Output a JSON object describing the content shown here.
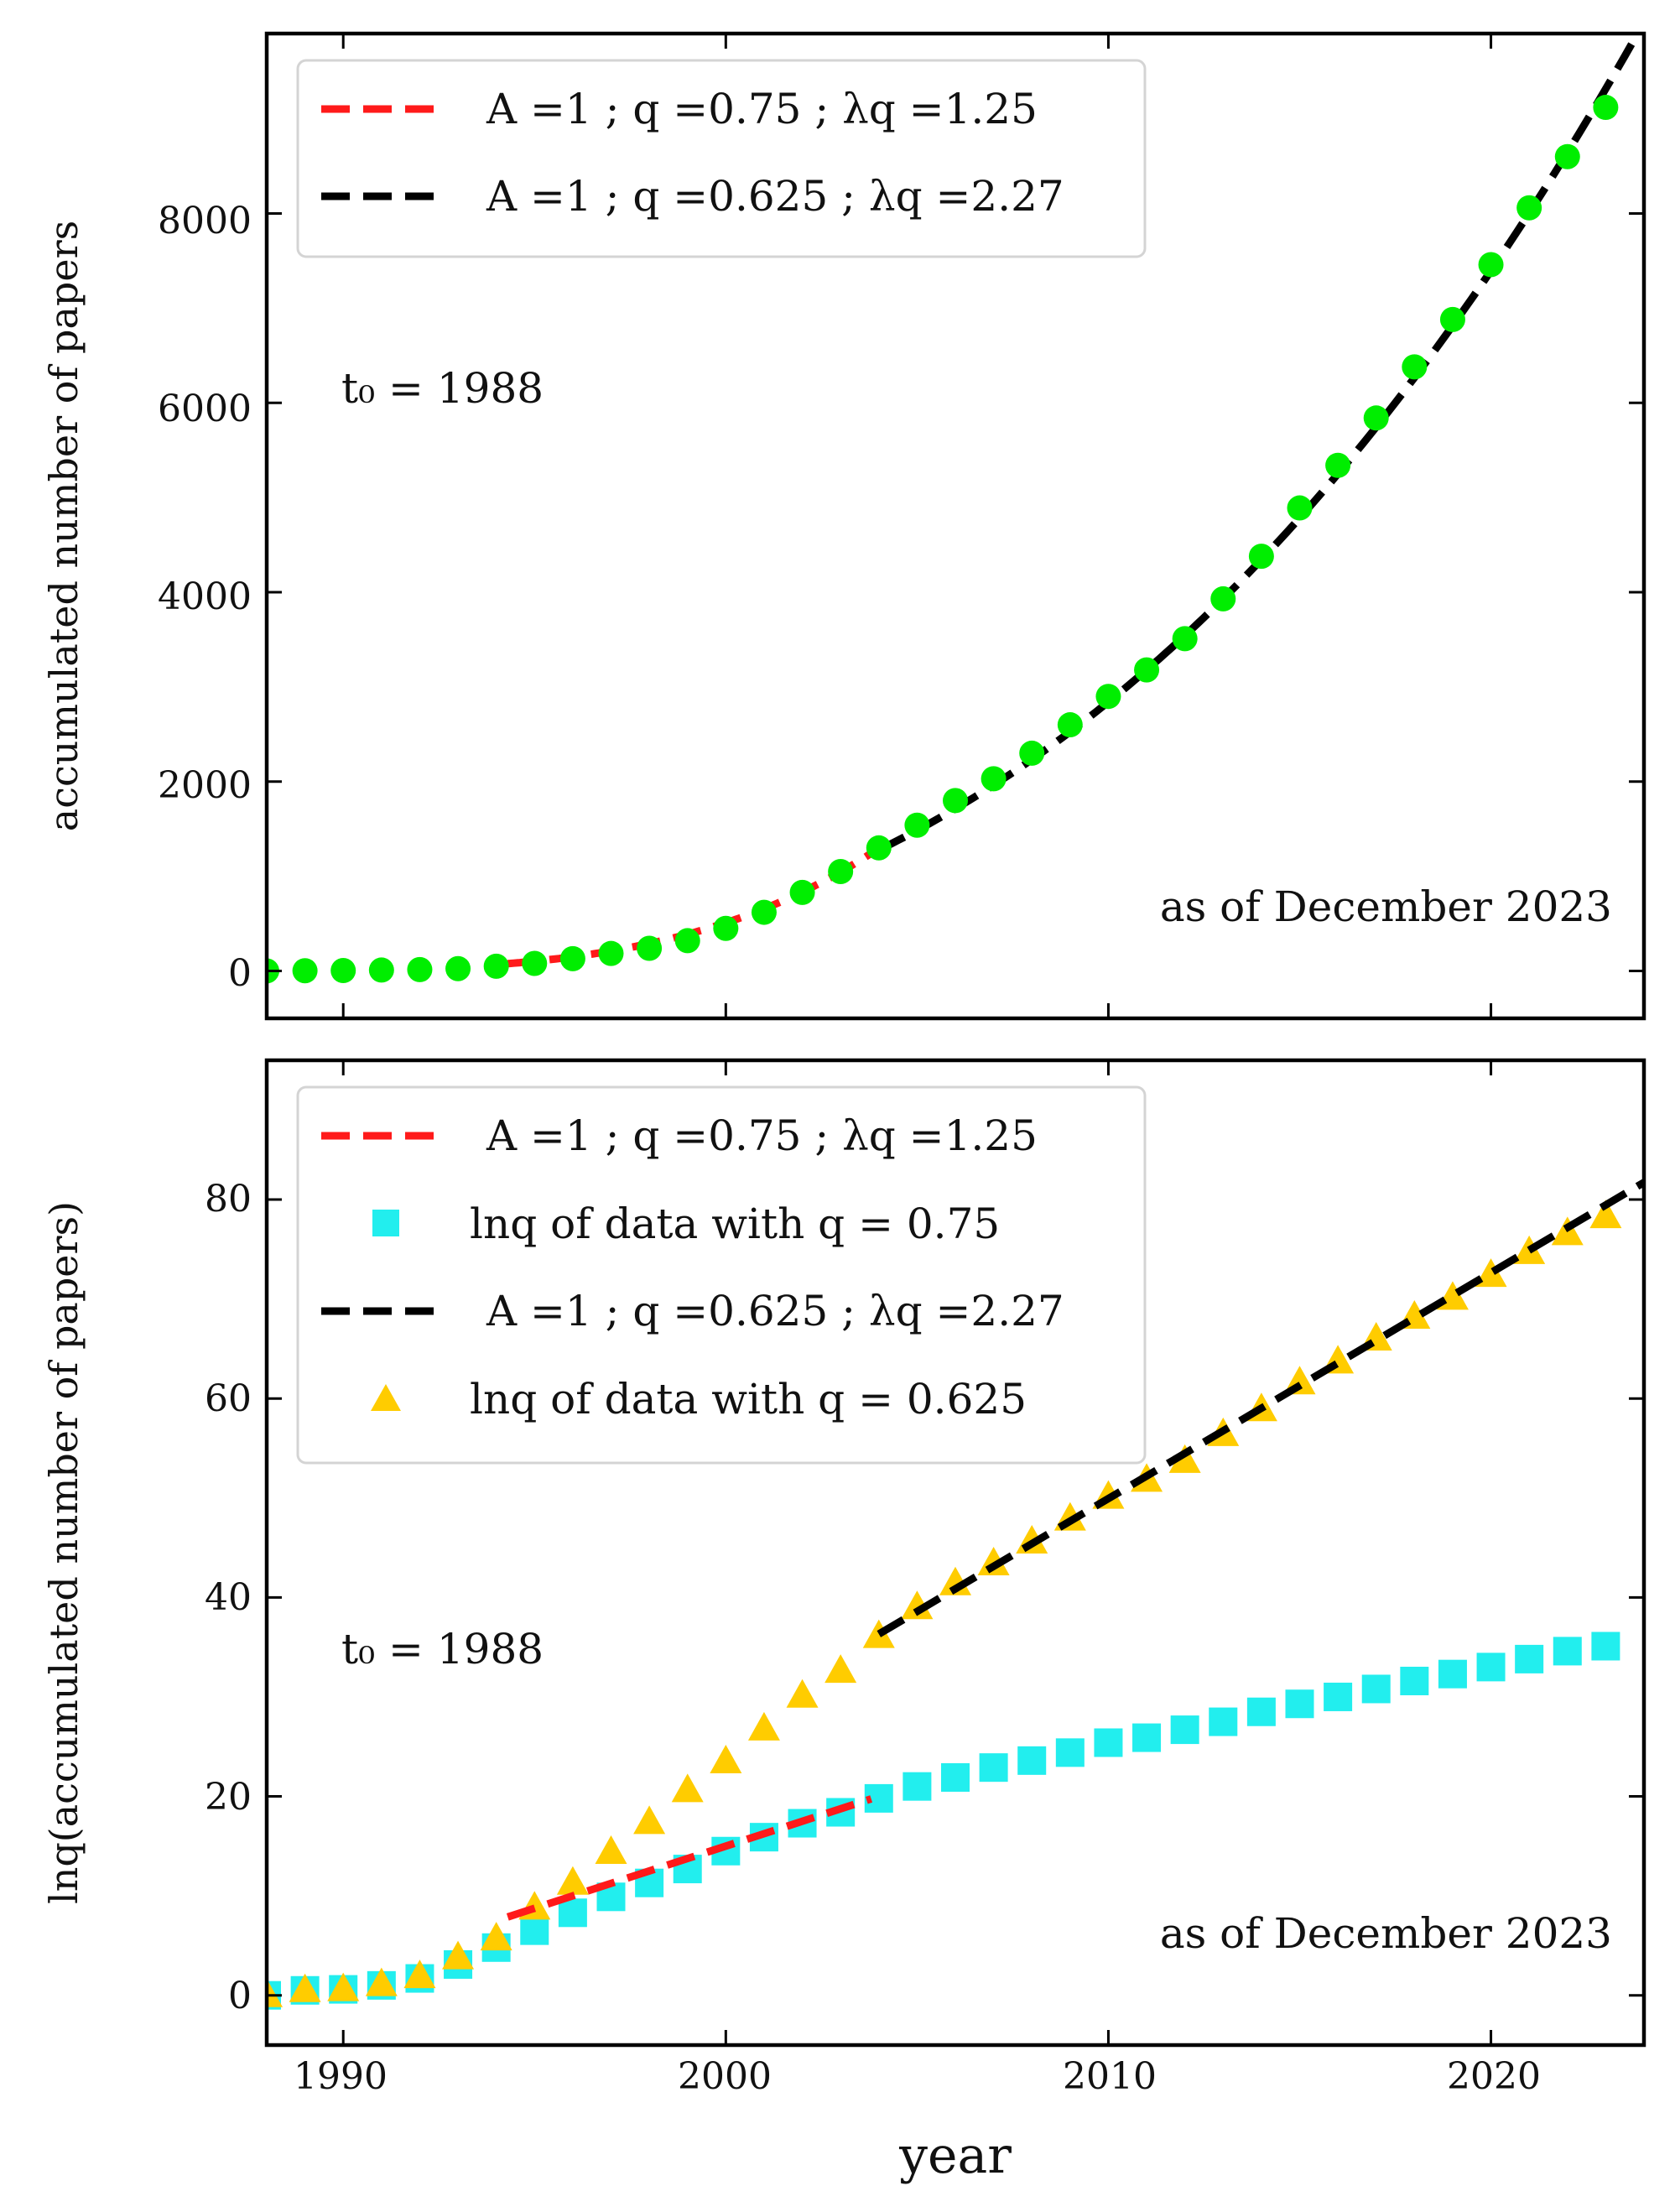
{
  "colors": {
    "red": "#ff1a1a",
    "black": "#000000",
    "green": "#00ee00",
    "cyan": "#22eeee",
    "gold": "#ffcc00",
    "legend_border": "#d4d4d4"
  },
  "chart_data": [
    {
      "type": "scatter",
      "panel": "top",
      "ylabel": "accumulated number of papers",
      "xlim": [
        1988,
        2024
      ],
      "ylim": [
        -500,
        9900
      ],
      "x_ticks": [
        1990,
        2000,
        2010,
        2020
      ],
      "y_ticks": [
        0,
        2000,
        4000,
        6000,
        8000
      ],
      "y_tick_labels": [
        "0",
        "2000",
        "4000",
        "6000",
        "8000"
      ],
      "annotation_t0": "t₀ = 1988",
      "annotation_date": "as of December 2023",
      "legend_position": "top-left",
      "legend": [
        {
          "text": "A =1 ; q =0.75 ; λq =1.25",
          "style": "red-dashed"
        },
        {
          "text": "A =1 ; q =0.625 ; λq =2.27",
          "style": "black-dashed"
        }
      ],
      "series": [
        {
          "name": "accumulated papers",
          "marker": "circle",
          "color": "green",
          "x": [
            1988,
            1989,
            1990,
            1991,
            1992,
            1993,
            1994,
            1995,
            1996,
            1997,
            1998,
            1999,
            2000,
            2001,
            2002,
            2003,
            2004,
            2005,
            2006,
            2007,
            2008,
            2009,
            2010,
            2011,
            2012,
            2013,
            2014,
            2015,
            2016,
            2017,
            2018,
            2019,
            2020,
            2021,
            2022,
            2023
          ],
          "y": [
            1,
            3,
            5,
            10,
            15,
            25,
            50,
            80,
            130,
            185,
            240,
            320,
            450,
            620,
            830,
            1050,
            1300,
            1540,
            1800,
            2030,
            2300,
            2600,
            2900,
            3180,
            3510,
            3930,
            4380,
            4890,
            5340,
            5840,
            6380,
            6880,
            7460,
            8060,
            8600,
            9120
          ]
        },
        {
          "name": "A =1 ; q =0.75 ; λq =1.25",
          "line": "dashed",
          "color": "red",
          "q": 0.75,
          "lambda_q": 1.25,
          "A": 1,
          "t0": 1988,
          "x_range": [
            1994.3,
            2003.8
          ]
        },
        {
          "name": "A =1 ; q =0.625 ; λq =2.27",
          "line": "dashed",
          "color": "black",
          "q": 0.625,
          "lambda_q": 2.27,
          "A": 1,
          "t0": 1988,
          "x_range": [
            2004.0,
            2024.0
          ]
        }
      ]
    },
    {
      "type": "scatter",
      "panel": "bottom",
      "xlabel": "year",
      "ylabel": "lnq(accumulated number of papers)",
      "xlim": [
        1988,
        2024
      ],
      "ylim": [
        -5,
        94
      ],
      "x_ticks": [
        1990,
        2000,
        2010,
        2020
      ],
      "x_tick_labels": [
        "1990",
        "2000",
        "2010",
        "2020"
      ],
      "y_ticks": [
        0,
        20,
        40,
        60,
        80
      ],
      "y_tick_labels": [
        "0",
        "20",
        "40",
        "60",
        "80"
      ],
      "annotation_t0": "t₀ = 1988",
      "annotation_date": "as of December 2023",
      "legend_position": "top-left",
      "legend": [
        {
          "text": "A =1 ; q =0.75 ; λq =1.25",
          "style": "red-dashed"
        },
        {
          "text": "lnq of data with q = 0.75",
          "style": "cyan-square"
        },
        {
          "text": "A =1 ; q =0.625 ; λq =2.27",
          "style": "black-dashed"
        },
        {
          "text": "lnq of data with q = 0.625",
          "style": "gold-triangle"
        }
      ],
      "series": [
        {
          "name": "lnq of data with q = 0.75",
          "marker": "square",
          "color": "cyan",
          "x": [
            1988,
            1989,
            1990,
            1991,
            1992,
            1993,
            1994,
            1995,
            1996,
            1997,
            1998,
            1999,
            2000,
            2001,
            2002,
            2003,
            2004,
            2005,
            2006,
            2007,
            2008,
            2009,
            2010,
            2011,
            2012,
            2013,
            2014,
            2015,
            2016,
            2017,
            2018,
            2019,
            2020,
            2021,
            2022,
            2023
          ],
          "y": [
            0,
            0.5,
            0.6,
            1.0,
            1.7,
            3.1,
            4.8,
            6.5,
            8.3,
            9.9,
            11.3,
            12.7,
            14.5,
            15.9,
            17.3,
            18.4,
            19.8,
            21.0,
            21.9,
            22.9,
            23.6,
            24.4,
            25.4,
            25.9,
            26.7,
            27.5,
            28.5,
            29.3,
            30.0,
            30.8,
            31.6,
            32.3,
            33.0,
            33.8,
            34.6,
            35.1
          ]
        },
        {
          "name": "lnq of data with q = 0.625",
          "marker": "triangle",
          "color": "gold",
          "x": [
            1988,
            1989,
            1990,
            1991,
            1992,
            1993,
            1994,
            1995,
            1996,
            1997,
            1998,
            1999,
            2000,
            2001,
            2002,
            2003,
            2004,
            2005,
            2006,
            2007,
            2008,
            2009,
            2010,
            2011,
            2012,
            2013,
            2014,
            2015,
            2016,
            2017,
            2018,
            2019,
            2020,
            2021,
            2022,
            2023
          ],
          "y": [
            0,
            0.5,
            0.6,
            1.1,
            1.9,
            3.8,
            5.7,
            8.8,
            11.3,
            14.4,
            17.4,
            20.6,
            23.5,
            26.8,
            30.1,
            32.6,
            36.1,
            39.0,
            41.4,
            43.4,
            45.6,
            47.9,
            50.1,
            51.8,
            53.7,
            56.4,
            58.9,
            61.6,
            63.7,
            66.0,
            68.2,
            70.1,
            72.4,
            74.7,
            76.6,
            78.3
          ]
        },
        {
          "name": "A =1 ; q =0.75 ; λq =1.25",
          "line": "dashed",
          "color": "red",
          "x_range": [
            1994.3,
            2003.8
          ],
          "slope": 1.25,
          "intercept_x": 1988
        },
        {
          "name": "A =1 ; q =0.625 ; λq =2.27",
          "line": "dashed",
          "color": "black",
          "x_range": [
            2004.0,
            2024.0
          ],
          "slope": 2.27,
          "intercept_x": 1988
        }
      ]
    }
  ]
}
